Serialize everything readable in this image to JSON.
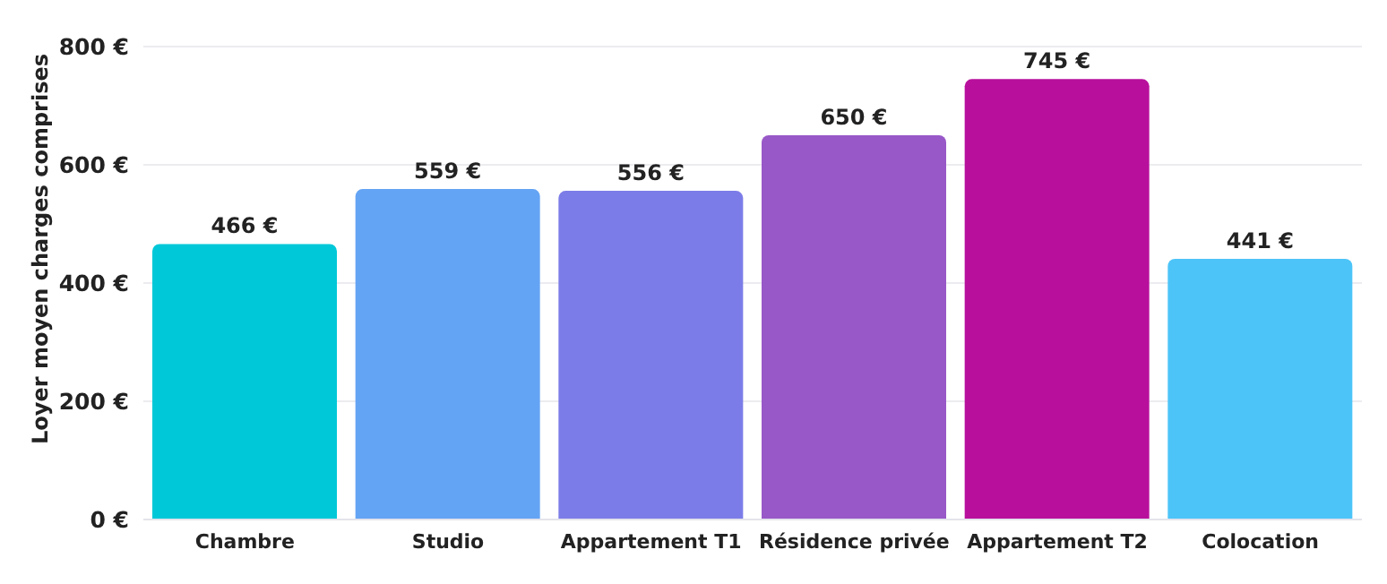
{
  "chart_data": {
    "type": "bar",
    "ylabel": "Loyer moyen charges comprises",
    "categories": [
      "Chambre",
      "Studio",
      "Appartement T1",
      "Résidence privée",
      "Appartement T2",
      "Colocation"
    ],
    "values": [
      466,
      559,
      556,
      650,
      745,
      441
    ],
    "colors": [
      "#00c8d8",
      "#64a4f4",
      "#7c7ce8",
      "#9858c8",
      "#b8109c",
      "#4cc4f8"
    ],
    "value_labels": [
      "466 €",
      "559 €",
      "556 €",
      "650 €",
      "745 €",
      "441 €"
    ],
    "ylim": [
      0,
      800
    ],
    "yticks": [
      {
        "value": 0,
        "label": "0 €"
      },
      {
        "value": 200,
        "label": "200 €"
      },
      {
        "value": 400,
        "label": "400 €"
      },
      {
        "value": 600,
        "label": "600 €"
      },
      {
        "value": 800,
        "label": "800 €"
      }
    ],
    "grid": "y"
  }
}
